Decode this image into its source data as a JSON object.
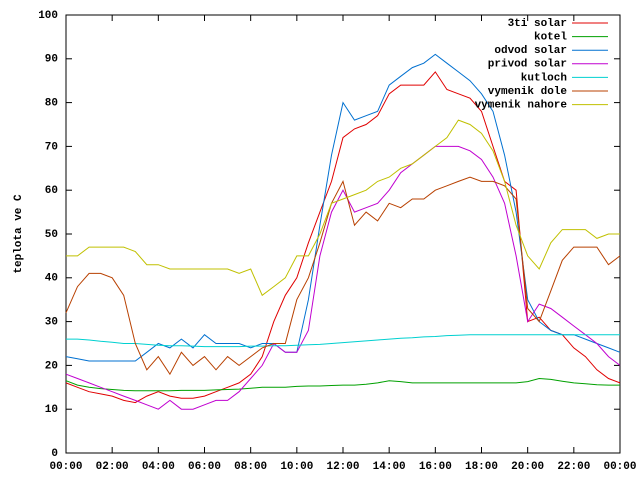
{
  "chart_data": {
    "type": "line",
    "ylabel": "teplota ve C",
    "x": [
      0,
      0.5,
      1,
      1.5,
      2,
      2.5,
      3,
      3.5,
      4,
      4.5,
      5,
      5.5,
      6,
      6.5,
      7,
      7.5,
      8,
      8.5,
      9,
      9.5,
      10,
      10.5,
      11,
      11.5,
      12,
      12.5,
      13,
      13.5,
      14,
      14.5,
      15,
      15.5,
      16,
      16.5,
      17,
      17.5,
      18,
      18.5,
      19,
      19.5,
      20,
      20.5,
      21,
      21.5,
      22,
      22.5,
      23,
      23.5,
      24
    ],
    "xlim": [
      0,
      24
    ],
    "xticks": [
      {
        "value": 0,
        "label": "00:00"
      },
      {
        "value": 2,
        "label": "02:00"
      },
      {
        "value": 4,
        "label": "04:00"
      },
      {
        "value": 6,
        "label": "06:00"
      },
      {
        "value": 8,
        "label": "08:00"
      },
      {
        "value": 10,
        "label": "10:00"
      },
      {
        "value": 12,
        "label": "12:00"
      },
      {
        "value": 14,
        "label": "14:00"
      },
      {
        "value": 16,
        "label": "16:00"
      },
      {
        "value": 18,
        "label": "18:00"
      },
      {
        "value": 20,
        "label": "20:00"
      },
      {
        "value": 22,
        "label": "22:00"
      },
      {
        "value": 24,
        "label": "00:00"
      }
    ],
    "ylim": [
      0,
      100
    ],
    "yticks": [
      0,
      10,
      20,
      30,
      40,
      50,
      60,
      70,
      80,
      90,
      100
    ],
    "legend": "top-right",
    "series": [
      {
        "name": "3ti solar",
        "color": "#e00000",
        "values": [
          16,
          15,
          14,
          13.5,
          13,
          12,
          11.5,
          13,
          14,
          13,
          12.5,
          12.5,
          13,
          14,
          15,
          16,
          18,
          22,
          30,
          36,
          40,
          48,
          55,
          62,
          72,
          74,
          75,
          77,
          82,
          84,
          84,
          84,
          87,
          83,
          82,
          81,
          78,
          70,
          62,
          60,
          30,
          31,
          28,
          27,
          24,
          22,
          19,
          17,
          16
        ]
      },
      {
        "name": "kotel",
        "color": "#00a000",
        "values": [
          16.5,
          15.5,
          15,
          14.7,
          14.5,
          14.3,
          14.2,
          14.2,
          14.2,
          14.2,
          14.3,
          14.3,
          14.3,
          14.4,
          14.5,
          14.6,
          14.8,
          15,
          15,
          15,
          15.2,
          15.3,
          15.3,
          15.4,
          15.5,
          15.5,
          15.7,
          16,
          16.5,
          16.3,
          16,
          16,
          16,
          16,
          16,
          16,
          16,
          16,
          16,
          16,
          16.3,
          17,
          16.8,
          16.4,
          16,
          15.8,
          15.6,
          15.5,
          15.5
        ]
      },
      {
        "name": "odvod solar",
        "color": "#0070d0",
        "values": [
          22,
          21.5,
          21,
          21,
          21,
          21,
          21,
          23,
          25,
          24,
          26,
          24,
          27,
          25,
          25,
          25,
          24,
          25,
          25,
          23,
          23,
          35,
          52,
          68,
          80,
          76,
          77,
          78,
          84,
          86,
          88,
          89,
          91,
          89,
          87,
          85,
          82,
          78,
          68,
          55,
          35,
          30,
          28,
          27,
          27,
          26,
          25,
          24,
          23
        ]
      },
      {
        "name": "privod solar",
        "color": "#c000d0",
        "values": [
          18,
          17,
          16,
          15,
          14,
          13,
          12,
          11,
          10,
          12,
          10,
          10,
          11,
          12,
          12,
          14,
          17,
          20,
          25,
          23,
          23,
          28,
          45,
          55,
          60,
          55,
          56,
          57,
          60,
          64,
          66,
          68,
          70,
          70,
          70,
          69,
          67,
          63,
          57,
          45,
          30,
          34,
          33,
          31,
          29,
          27,
          25,
          22,
          20
        ]
      },
      {
        "name": "kutloch",
        "color": "#00d0d0",
        "values": [
          26,
          26,
          25.8,
          25.5,
          25.3,
          25,
          25,
          24.8,
          24.6,
          24.5,
          24.5,
          24.4,
          24.3,
          24.3,
          24.3,
          24.3,
          24.4,
          24.4,
          24.5,
          24.5,
          24.6,
          24.7,
          24.8,
          25,
          25.2,
          25.4,
          25.6,
          25.8,
          26,
          26.2,
          26.3,
          26.5,
          26.6,
          26.8,
          26.9,
          27,
          27,
          27,
          27,
          27,
          27,
          27,
          27,
          27,
          27,
          27,
          27,
          27,
          27
        ]
      },
      {
        "name": "vymenik dole",
        "color": "#b84000",
        "values": [
          32,
          38,
          41,
          41,
          40,
          36,
          25,
          19,
          22,
          18,
          23,
          20,
          22,
          19,
          22,
          20,
          22,
          24,
          25,
          25,
          35,
          40,
          48,
          57,
          62,
          52,
          55,
          53,
          57,
          56,
          58,
          58,
          60,
          61,
          62,
          63,
          62,
          62,
          61,
          58,
          33,
          30,
          37,
          44,
          47,
          47,
          47,
          43,
          45
        ]
      },
      {
        "name": "vymenik nahore",
        "color": "#c0c000",
        "values": [
          45,
          45,
          47,
          47,
          47,
          47,
          46,
          43,
          43,
          42,
          42,
          42,
          42,
          42,
          42,
          41,
          42,
          36,
          38,
          40,
          45,
          45,
          50,
          57,
          58,
          59,
          60,
          62,
          63,
          65,
          66,
          68,
          70,
          72,
          76,
          75,
          73,
          69,
          62,
          52,
          45,
          42,
          48,
          51,
          51,
          51,
          49,
          50,
          50
        ]
      }
    ]
  }
}
